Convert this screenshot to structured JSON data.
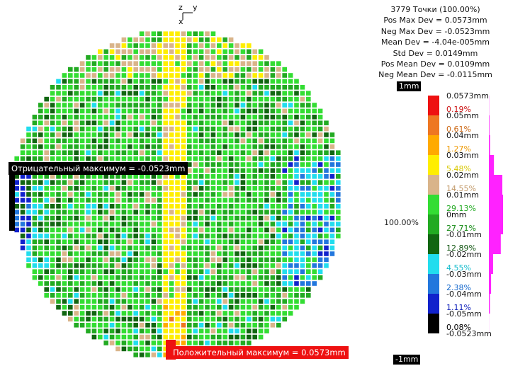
{
  "axes_widget": {
    "z": "z",
    "y": "y",
    "x": "x"
  },
  "stats": {
    "points": "3779 Точки (100.00%)",
    "pos_max": "Pos Max Dev = 0.0573mm",
    "neg_max": "Neg Max Dev = -0.0523mm",
    "mean": "Mean Dev = -4.04e-005mm",
    "std": "Std Dev = 0.0149mm",
    "pos_mean": "Pos Mean Dev = 0.0109mm",
    "neg_mean": "Neg Mean Dev = -0.0115mm"
  },
  "scale": {
    "top_tag": "1mm",
    "bottom_tag": "-1mm",
    "total_pct": "100.00%"
  },
  "callouts": {
    "negative": "Отрицательный максимум = -0.0523mm",
    "positive": "Положительный максимум = 0.0573mm"
  },
  "chart_data": {
    "type": "heatmap",
    "title": "",
    "legend_placement": "right",
    "grid": false,
    "value_labels": [
      "0.0573mm",
      "0.05mm",
      "0.04mm",
      "0.03mm",
      "0.02mm",
      "0.01mm",
      "0mm",
      "-0.01mm",
      "-0.02mm",
      "-0.03mm",
      "-0.04mm",
      "-0.05mm",
      "-0.0523mm"
    ],
    "bins": [
      {
        "color": "#ee1111",
        "pct": "0.19%",
        "pct_color": "#cc1111",
        "value": 0.19
      },
      {
        "color": "#ee7722",
        "pct": "0.61%",
        "pct_color": "#cc6611",
        "value": 0.61
      },
      {
        "color": "#ffaa00",
        "pct": "1.27%",
        "pct_color": "#ee9900",
        "value": 1.27
      },
      {
        "color": "#ffee00",
        "pct": "5.48%",
        "pct_color": "#d8c800",
        "value": 5.48
      },
      {
        "color": "#d9b48a",
        "pct": "14.55%",
        "pct_color": "#c29a6a",
        "value": 14.55
      },
      {
        "color": "#33dd33",
        "pct": "29.13%",
        "pct_color": "#22aa22",
        "value": 29.13
      },
      {
        "color": "#22aa22",
        "pct": "27.71%",
        "pct_color": "#118811",
        "value": 27.71
      },
      {
        "color": "#116611",
        "pct": "12.89%",
        "pct_color": "#115511",
        "value": 12.89
      },
      {
        "color": "#22ddee",
        "pct": "4.55%",
        "pct_color": "#11bbcc",
        "value": 4.55
      },
      {
        "color": "#2277dd",
        "pct": "2.38%",
        "pct_color": "#1166cc",
        "value": 2.38
      },
      {
        "color": "#1122cc",
        "pct": "1.11%",
        "pct_color": "#1122bb",
        "value": 1.11
      },
      {
        "color": "#000000",
        "pct": "0.08%",
        "pct_color": "#000000",
        "value": 0.08
      }
    ],
    "extremes": {
      "pos_max_mm": 0.0573,
      "neg_max_mm": -0.0523
    }
  }
}
